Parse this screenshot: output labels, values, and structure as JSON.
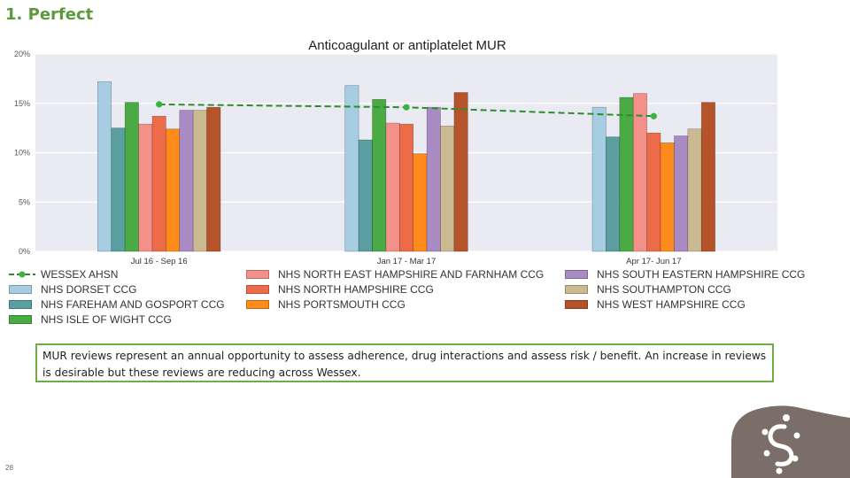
{
  "slide": {
    "title": "1. Perfect",
    "page_number": "28",
    "note": "MUR reviews represent an annual opportunity to assess adherence, drug interactions and assess risk / benefit.  An increase in reviews is desirable but these reviews are reducing across Wessex."
  },
  "chart_data": {
    "type": "bar",
    "title": "Anticoagulant or antiplatelet MUR",
    "categories": [
      "Jul 16 - Sep 16",
      "Jan 17 - Mar 17",
      "Apr 17- Jun 17"
    ],
    "ylim": [
      0,
      20
    ],
    "yticks": [
      0,
      5,
      10,
      15,
      20
    ],
    "ytick_labels": [
      "0%",
      "5%",
      "10%",
      "15%",
      "20%"
    ],
    "grid": true,
    "legend_position": "bottom",
    "line_series": {
      "name": "WESSEX AHSN",
      "values": [
        14.9,
        14.6,
        13.7
      ],
      "color": "#2e8b2e"
    },
    "series": [
      {
        "name": "NHS DORSET CCG",
        "color": "#a6cde2",
        "values": [
          17.2,
          16.8,
          14.6
        ]
      },
      {
        "name": "NHS FAREHAM AND GOSPORT CCG",
        "color": "#5b9fa0",
        "values": [
          12.5,
          11.3,
          11.6
        ]
      },
      {
        "name": "NHS ISLE OF WIGHT CCG",
        "color": "#4aaa44",
        "values": [
          15.1,
          15.4,
          15.6
        ]
      },
      {
        "name": "NHS NORTH EAST HAMPSHIRE AND FARNHAM CCG",
        "color": "#f4908a",
        "values": [
          12.9,
          13.0,
          16.0
        ]
      },
      {
        "name": "NHS NORTH HAMPSHIRE CCG",
        "color": "#ee6b4a",
        "values": [
          13.7,
          12.9,
          12.0
        ]
      },
      {
        "name": "NHS PORTSMOUTH CCG",
        "color": "#ff8a1c",
        "values": [
          12.4,
          9.9,
          11.0
        ]
      },
      {
        "name": "NHS SOUTH EASTERN HAMPSHIRE CCG",
        "color": "#a98bc4",
        "values": [
          14.3,
          14.6,
          11.7
        ]
      },
      {
        "name": "NHS SOUTHAMPTON CCG",
        "color": "#cbb991",
        "values": [
          14.3,
          12.7,
          12.4
        ]
      },
      {
        "name": "NHS WEST HAMPSHIRE CCG",
        "color": "#b5532a",
        "values": [
          14.6,
          16.1,
          15.1
        ]
      }
    ]
  },
  "colors": {
    "plot_background": "#eaeaf2",
    "title_green": "#5a9a3a",
    "note_border": "#70ad47",
    "logo_block": "#7b6d68"
  },
  "logo": {
    "icon": "wessex-logo-icon"
  }
}
